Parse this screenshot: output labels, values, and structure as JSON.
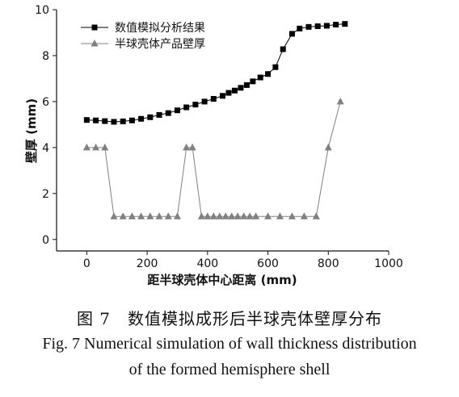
{
  "chart_data": {
    "type": "line",
    "title": "",
    "xlabel": "距半球壳体中心距离 (mm)",
    "ylabel": "壁厚 (mm)",
    "xlim": [
      -100,
      1000
    ],
    "ylim": [
      -0.5,
      10
    ],
    "xticks": [
      0,
      200,
      400,
      600,
      800,
      1000
    ],
    "yticks": [
      0,
      2,
      4,
      6,
      8,
      10
    ],
    "grid": false,
    "legend_position": "top-left",
    "series": [
      {
        "name": "数值模拟分析结果",
        "marker": "square",
        "color": "#000000",
        "x": [
          0,
          30,
          60,
          90,
          120,
          150,
          180,
          210,
          240,
          270,
          300,
          330,
          360,
          390,
          420,
          450,
          470,
          490,
          510,
          530,
          550,
          575,
          600,
          625,
          650,
          680,
          705,
          735,
          765,
          795,
          825,
          855
        ],
        "y": [
          5.2,
          5.18,
          5.15,
          5.12,
          5.14,
          5.18,
          5.25,
          5.32,
          5.42,
          5.5,
          5.62,
          5.75,
          5.87,
          6.0,
          6.12,
          6.25,
          6.38,
          6.48,
          6.6,
          6.72,
          6.88,
          7.05,
          7.2,
          7.5,
          8.28,
          8.95,
          9.18,
          9.25,
          9.28,
          9.3,
          9.35,
          9.38
        ]
      },
      {
        "name": "半球壳体产品壁厚",
        "marker": "triangle",
        "color": "#808080",
        "x": [
          0,
          30,
          60,
          90,
          120,
          150,
          180,
          210,
          240,
          270,
          300,
          330,
          350,
          380,
          400,
          420,
          440,
          460,
          480,
          500,
          520,
          540,
          560,
          600,
          640,
          680,
          720,
          760,
          800,
          840
        ],
        "y": [
          4,
          4,
          4,
          1,
          1,
          1,
          1,
          1,
          1,
          1,
          1,
          4,
          4,
          1,
          1,
          1,
          1,
          1,
          1,
          1,
          1,
          1,
          1,
          1,
          1,
          1,
          1,
          1,
          4,
          6
        ]
      }
    ]
  },
  "caption": {
    "zh": "图 7　数值模拟成形后半球壳体壁厚分布",
    "en_line1": "Fig. 7 Numerical simulation of wall thickness distribution",
    "en_line2": "of the formed hemisphere shell"
  }
}
